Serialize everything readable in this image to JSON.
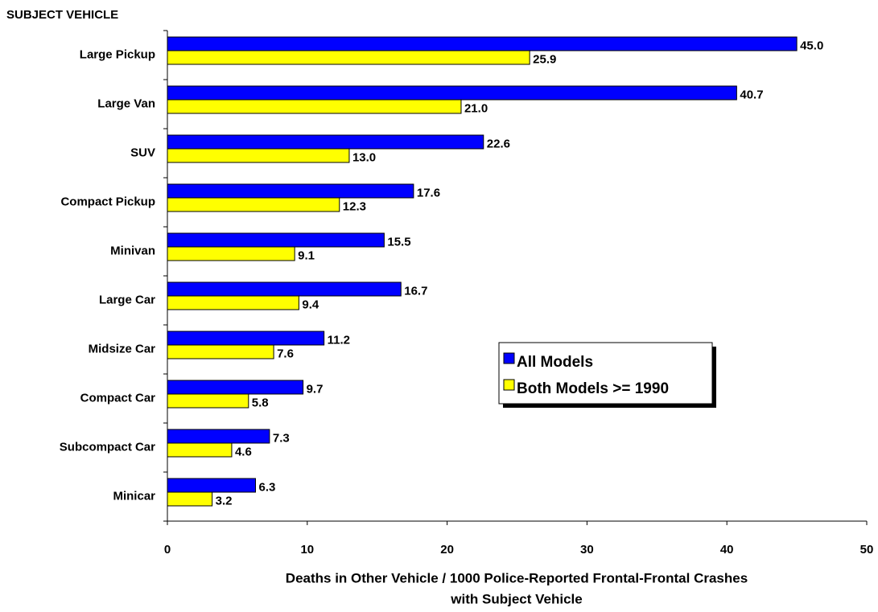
{
  "chart_data": {
    "type": "hbar",
    "ylabel": "SUBJECT VEHICLE",
    "xlabel": [
      "Deaths in Other Vehicle / 1000 Police-Reported Frontal-Frontal Crashes",
      "with Subject Vehicle"
    ],
    "categories": [
      "Large Pickup",
      "Large Van",
      "SUV",
      "Compact Pickup",
      "Minivan",
      "Large Car",
      "Midsize Car",
      "Compact Car",
      "Subcompact Car",
      "Minicar"
    ],
    "series": [
      {
        "name": "All Models",
        "color": "#0000ff",
        "values": [
          45.0,
          40.7,
          22.6,
          17.6,
          15.5,
          16.7,
          11.2,
          9.7,
          7.3,
          6.3
        ],
        "value_labels": [
          "45.0",
          "40.7",
          "22.6",
          "17.6",
          "15.5",
          "16.7",
          "11.2",
          "9.7",
          "7.3",
          "6.3"
        ]
      },
      {
        "name": "Both Models >= 1990",
        "color": "#ffff00",
        "values": [
          25.9,
          21.0,
          13.0,
          12.3,
          9.1,
          9.4,
          7.6,
          5.8,
          4.6,
          3.2
        ],
        "value_labels": [
          "25.9",
          "21.0",
          "13.0",
          "12.3",
          "9.1",
          "9.4",
          "7.6",
          "5.8",
          "4.6",
          "3.2"
        ]
      }
    ],
    "xlim": [
      0,
      50
    ],
    "xticks": [
      0,
      10,
      20,
      30,
      40,
      50
    ],
    "grid": false,
    "legend": "right"
  }
}
